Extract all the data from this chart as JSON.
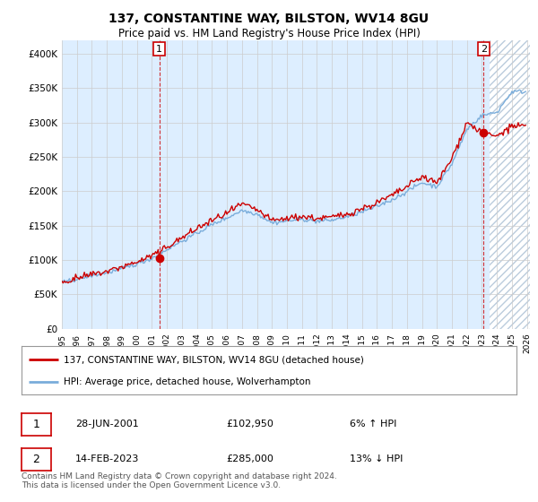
{
  "title": "137, CONSTANTINE WAY, BILSTON, WV14 8GU",
  "subtitle": "Price paid vs. HM Land Registry's House Price Index (HPI)",
  "ylim": [
    0,
    420000
  ],
  "yticks": [
    0,
    50000,
    100000,
    150000,
    200000,
    250000,
    300000,
    350000,
    400000
  ],
  "ytick_labels": [
    "£0",
    "£50K",
    "£100K",
    "£150K",
    "£200K",
    "£250K",
    "£300K",
    "£350K",
    "£400K"
  ],
  "xlim_start": 1995.3,
  "xlim_end": 2026.2,
  "xtick_years": [
    1995,
    1996,
    1997,
    1998,
    1999,
    2000,
    2001,
    2002,
    2003,
    2004,
    2005,
    2006,
    2007,
    2008,
    2009,
    2010,
    2011,
    2012,
    2013,
    2014,
    2015,
    2016,
    2017,
    2018,
    2019,
    2020,
    2021,
    2022,
    2023,
    2024,
    2025,
    2026
  ],
  "hpi_color": "#7aaddb",
  "price_color": "#cc0000",
  "bg_shading_color": "#ddeeff",
  "hatching_color": "#bbccdd",
  "point1_year": 2001.49,
  "point1_value": 102950,
  "point1_label": "1",
  "point2_year": 2023.12,
  "point2_value": 285000,
  "point2_label": "2",
  "legend_line1": "137, CONSTANTINE WAY, BILSTON, WV14 8GU (detached house)",
  "legend_line2": "HPI: Average price, detached house, Wolverhampton",
  "table_row1_num": "1",
  "table_row1_date": "28-JUN-2001",
  "table_row1_price": "£102,950",
  "table_row1_hpi": "6% ↑ HPI",
  "table_row2_num": "2",
  "table_row2_date": "14-FEB-2023",
  "table_row2_price": "£285,000",
  "table_row2_hpi": "13% ↓ HPI",
  "footer": "Contains HM Land Registry data © Crown copyright and database right 2024.\nThis data is licensed under the Open Government Licence v3.0.",
  "bg_color": "#ffffff",
  "grid_color": "#cccccc"
}
